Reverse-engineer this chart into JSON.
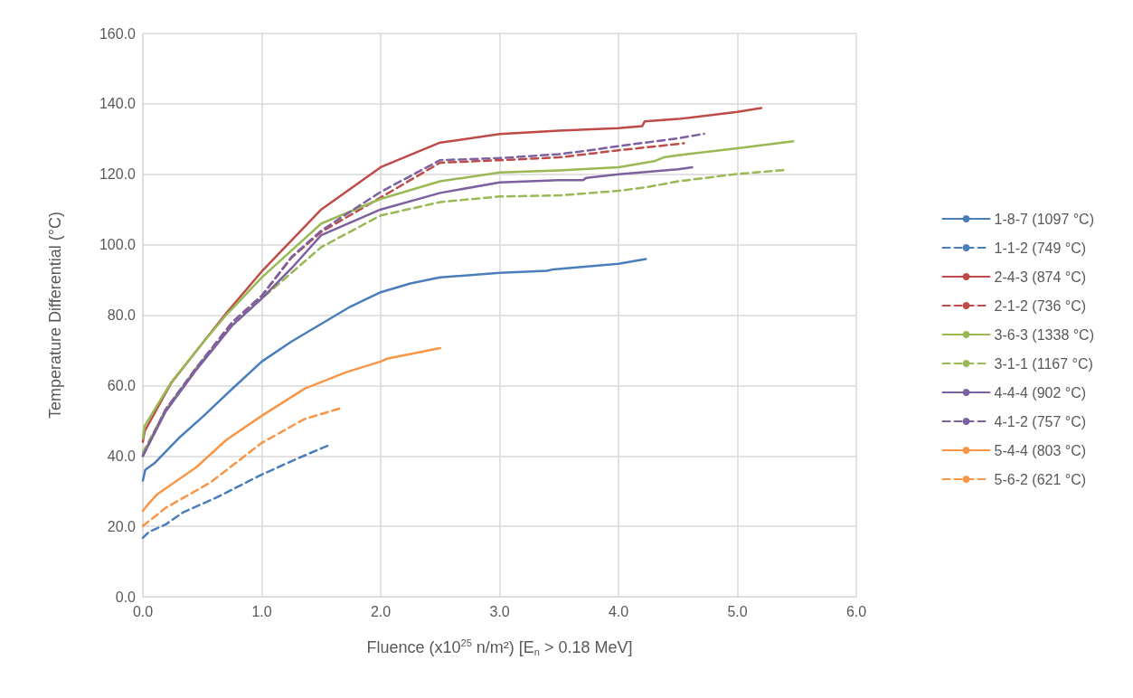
{
  "chart_data": {
    "type": "line",
    "xlabel": "Fluence (x10$^{25}$ n/m²) [E$_{n}$ > 0.18 MeV]",
    "ylabel": "Temperature Differential (°C)",
    "xlim": [
      0,
      6
    ],
    "xticks": [
      {
        "value": 0,
        "label": "0.0"
      },
      {
        "value": 1,
        "label": "1.0"
      },
      {
        "value": 2,
        "label": "2.0"
      },
      {
        "value": 3,
        "label": "3.0"
      },
      {
        "value": 4,
        "label": "4.0"
      },
      {
        "value": 5,
        "label": "5.0"
      },
      {
        "value": 6,
        "label": "6.0"
      }
    ],
    "ylim": [
      0,
      160
    ],
    "yticks": [
      {
        "value": 0,
        "label": "0.0"
      },
      {
        "value": 20,
        "label": "20.0"
      },
      {
        "value": 40,
        "label": "40.0"
      },
      {
        "value": 60,
        "label": "60.0"
      },
      {
        "value": 80,
        "label": "80.0"
      },
      {
        "value": 100,
        "label": "100.0"
      },
      {
        "value": 120,
        "label": "120.0"
      },
      {
        "value": 140,
        "label": "140.0"
      },
      {
        "value": 160,
        "label": "160.0"
      }
    ],
    "grid": true,
    "legend": "right",
    "marker": "none",
    "series": [
      {
        "name": "1-8-7 (1097 °C)",
        "color": "#4a7ebb",
        "line_style": "solid",
        "x": [
          0,
          0.02,
          0.1,
          0.3,
          0.5,
          0.75,
          1.0,
          1.25,
          1.5,
          1.75,
          2.0,
          2.25,
          2.5,
          3.0,
          3.4,
          3.45,
          4.0,
          4.23
        ],
        "values": [
          33,
          36,
          38,
          45,
          51,
          59,
          66.8,
          72.5,
          77.5,
          82.5,
          86.5,
          89,
          90.7,
          92,
          92.6,
          93,
          94.6,
          95.9
        ]
      },
      {
        "name": "1-1-2 (749 °C)",
        "color": "#4a7ebb",
        "line_style": "dashed",
        "x": [
          0,
          0.05,
          0.19,
          0.34,
          0.62,
          1.0,
          1.31,
          1.56
        ],
        "values": [
          16.7,
          18.4,
          20.5,
          24,
          28.2,
          34.7,
          39.4,
          43
        ]
      },
      {
        "name": "2-4-3 (874 °C)",
        "color": "#be4b48",
        "line_style": "solid",
        "x": [
          0,
          0.015,
          0.24,
          0.52,
          0.7,
          1.0,
          1.5,
          2.0,
          2.5,
          3.0,
          3.5,
          4.0,
          4.2,
          4.22,
          4.5,
          5.0,
          5.2
        ],
        "values": [
          44,
          47,
          60.8,
          72.8,
          80.5,
          92.4,
          110,
          122,
          129,
          131.4,
          132.4,
          133.1,
          133.7,
          135,
          135.7,
          137.7,
          138.8
        ]
      },
      {
        "name": "2-1-2 (736 °C)",
        "color": "#be4b48",
        "line_style": "dashed",
        "x": [
          0,
          0.19,
          0.45,
          0.75,
          1.0,
          1.25,
          1.5,
          2.0,
          2.5,
          3.0,
          3.5,
          3.8,
          4.0,
          4.55
        ],
        "values": [
          40,
          53.1,
          65,
          77.9,
          85.5,
          96.3,
          103.6,
          113.4,
          123.3,
          124,
          124.8,
          126,
          126.8,
          128.8
        ]
      },
      {
        "name": "3-6-3 (1338 °C)",
        "color": "#98b954",
        "line_style": "solid",
        "x": [
          0,
          0.015,
          0.24,
          0.52,
          0.7,
          1.0,
          1.5,
          2.0,
          2.5,
          3.0,
          3.5,
          4.0,
          4.3,
          4.38,
          4.5,
          5.0,
          5.47
        ],
        "values": [
          45,
          48.5,
          61,
          72.8,
          80,
          90.7,
          106,
          113,
          118,
          120.5,
          121.1,
          122,
          123.7,
          124.8,
          125.4,
          127.4,
          129.4
        ]
      },
      {
        "name": "3-1-1 (1167 °C)",
        "color": "#98b954",
        "line_style": "dashed",
        "x": [
          0,
          0.19,
          0.45,
          0.75,
          1.0,
          1.25,
          1.5,
          2.0,
          2.5,
          3.0,
          3.5,
          4.0,
          4.25,
          4.5,
          5.0,
          5.4
        ],
        "values": [
          41,
          53,
          65,
          77,
          84.7,
          92,
          99.3,
          108.3,
          112.1,
          113.7,
          114,
          115.3,
          116.4,
          118,
          120.1,
          121.2
        ]
      },
      {
        "name": "4-4-4 (902 °C)",
        "color": "#7d60a0",
        "line_style": "solid",
        "x": [
          0,
          0.19,
          0.45,
          0.75,
          1.0,
          1.25,
          1.5,
          2.0,
          2.5,
          3.0,
          3.5,
          3.7,
          3.73,
          4.0,
          4.5,
          4.62
        ],
        "values": [
          40,
          52.5,
          64.5,
          77,
          84.7,
          93.3,
          102.7,
          110,
          114.7,
          117.7,
          118.3,
          118.3,
          119,
          120,
          121.4,
          122
        ]
      },
      {
        "name": "4-1-2 (757 °C)",
        "color": "#7d60a0",
        "line_style": "dashed",
        "x": [
          0,
          0.19,
          0.45,
          0.75,
          1.0,
          1.25,
          1.5,
          2.0,
          2.5,
          3.0,
          3.5,
          3.8,
          4.0,
          4.5,
          4.72
        ],
        "values": [
          40,
          53.1,
          65,
          77.9,
          85.5,
          96.5,
          104,
          115,
          124,
          124.6,
          125.7,
          127,
          128,
          130.2,
          131.5
        ]
      },
      {
        "name": "5-4-4 (803 °C)",
        "color": "#f79646",
        "line_style": "solid",
        "x": [
          0,
          0.03,
          0.12,
          0.45,
          0.7,
          1.0,
          1.36,
          1.71,
          2.0,
          2.05,
          2.5
        ],
        "values": [
          24.4,
          25.7,
          29.1,
          36.8,
          44.5,
          51.4,
          59.1,
          63.8,
          66.8,
          67.6,
          70.6
        ]
      },
      {
        "name": "5-6-2 (621 °C)",
        "color": "#f79646",
        "line_style": "dashed",
        "x": [
          0,
          0.19,
          0.57,
          1.0,
          1.36,
          1.66
        ],
        "values": [
          20.1,
          25.2,
          32.5,
          43.7,
          50.5,
          53.5
        ]
      }
    ]
  }
}
